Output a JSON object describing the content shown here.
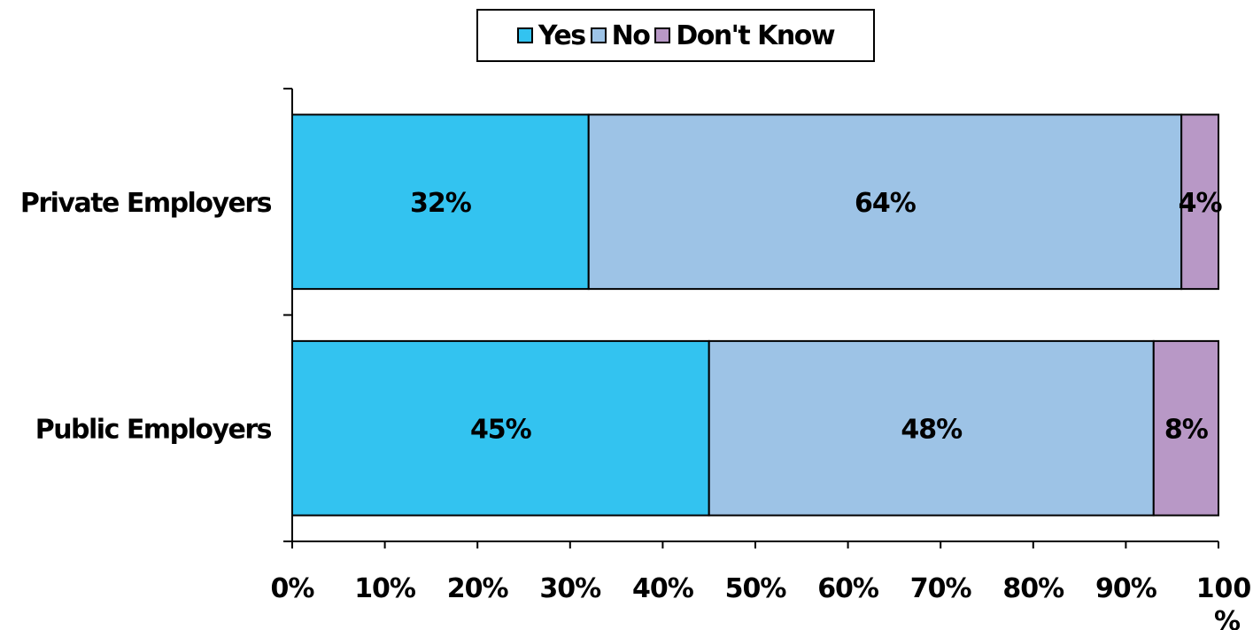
{
  "chart_data": {
    "type": "bar",
    "orientation": "horizontal",
    "stacked": true,
    "percent_stacked": true,
    "categories": [
      "Private Employers",
      "Public Employers"
    ],
    "series": [
      {
        "name": "Yes",
        "color": "#33c3f0",
        "values": [
          32,
          45
        ],
        "labels": [
          "32%",
          "45%"
        ]
      },
      {
        "name": "No",
        "color": "#9dc3e6",
        "values": [
          64,
          48
        ],
        "labels": [
          "64%",
          "48%"
        ]
      },
      {
        "name": "Don't Know",
        "color": "#b898c6",
        "values": [
          4,
          8
        ],
        "labels": [
          "4%",
          "8%"
        ]
      }
    ],
    "xlim": [
      0,
      100
    ],
    "xticks": [
      "0%",
      "10%",
      "20%",
      "30%",
      "40%",
      "50%",
      "60%",
      "70%",
      "80%",
      "90%",
      "100%"
    ],
    "legend_position": "top",
    "grid": false
  }
}
